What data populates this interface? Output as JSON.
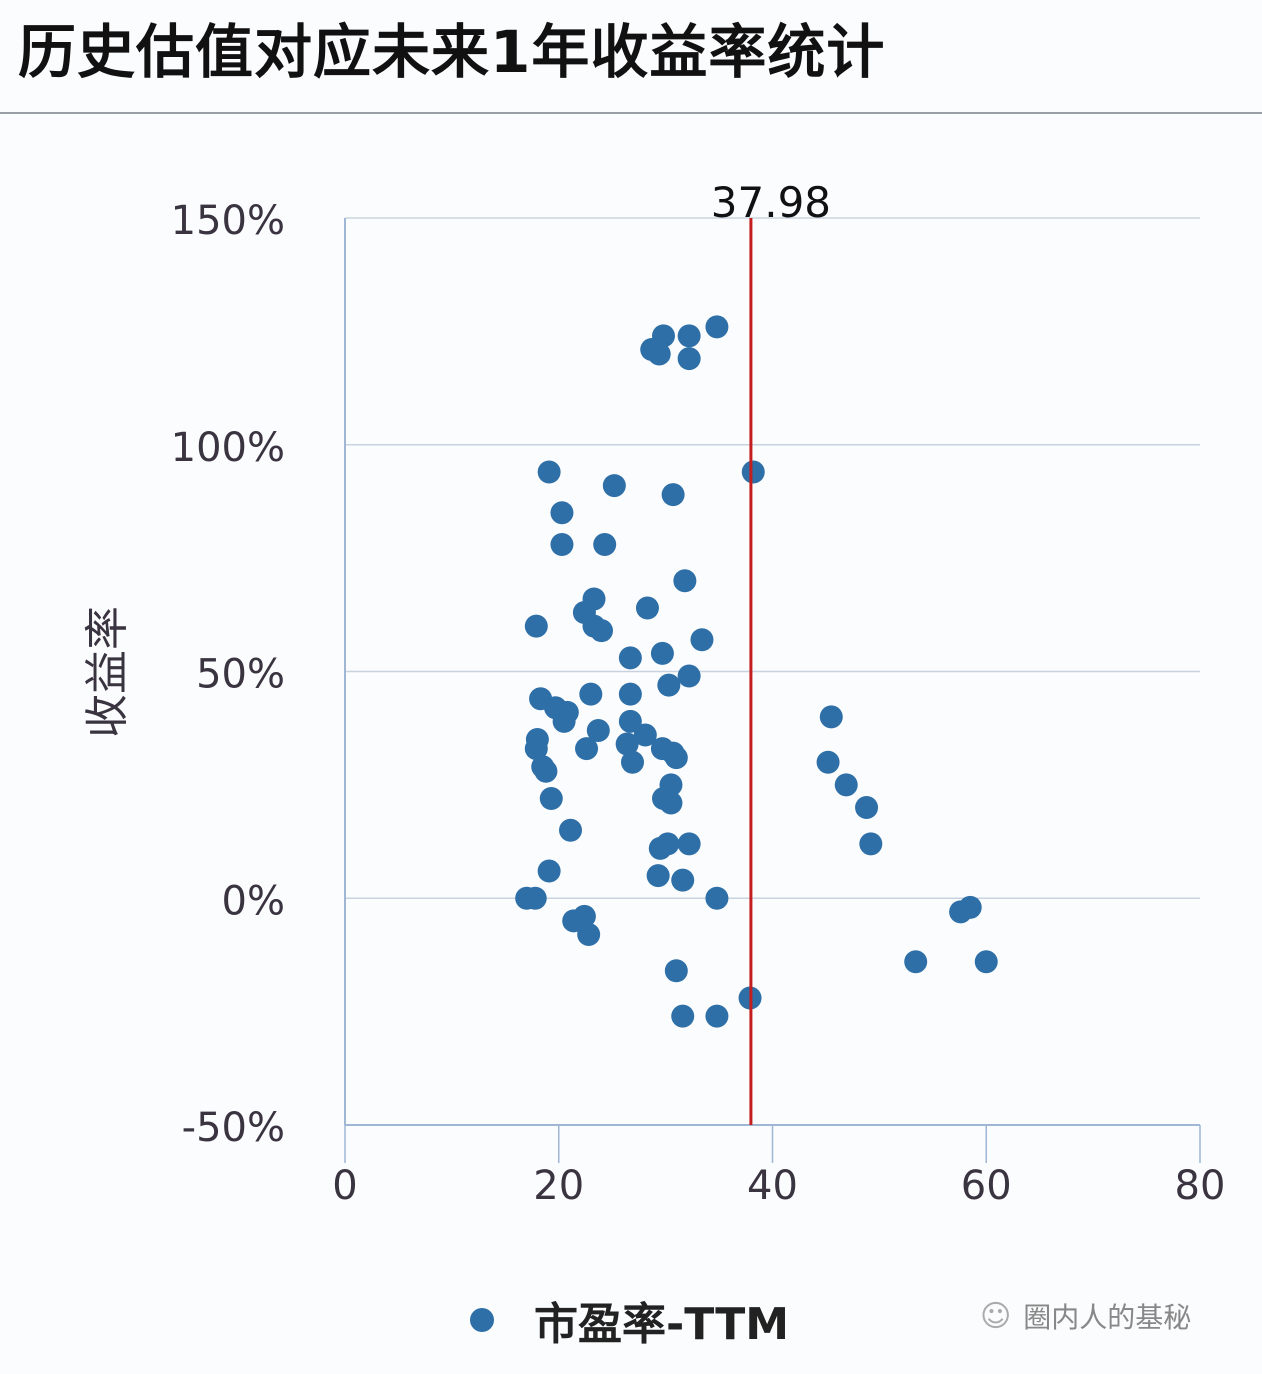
{
  "title": "历史估值对应未来1年收益率统计",
  "legend": {
    "label": "市盈率-TTM",
    "color": "#2e6fa7"
  },
  "watermark": {
    "icon": "wechat-icon",
    "text": "圈内人的基秘"
  },
  "colors": {
    "point": "#2e6fa7",
    "refline": "#c41e1e",
    "grid": "#c9d3e0",
    "axis": "#9fb6d4"
  },
  "chart_data": {
    "type": "scatter",
    "title": "历史估值对应未来1年收益率统计",
    "xlabel": "",
    "ylabel": "收益率",
    "xlim": [
      0,
      80
    ],
    "ylim": [
      -50,
      150
    ],
    "xticks": [
      "0",
      "20",
      "40",
      "60",
      "80"
    ],
    "yticks": [
      "150%",
      "100%",
      "50%",
      "0%",
      "-50%"
    ],
    "grid": "horizontal",
    "legend_position": "bottom",
    "reference_line": {
      "x": 37.98,
      "label": "37.98",
      "color": "#c41e1e"
    },
    "series": [
      {
        "name": "市盈率-TTM",
        "points": [
          [
            28.7,
            121
          ],
          [
            29.4,
            120
          ],
          [
            29.8,
            124
          ],
          [
            32.2,
            124
          ],
          [
            32.2,
            119
          ],
          [
            34.8,
            126
          ],
          [
            19.1,
            94
          ],
          [
            25.2,
            91
          ],
          [
            30.7,
            89
          ],
          [
            38.2,
            94
          ],
          [
            20.3,
            85
          ],
          [
            20.3,
            78
          ],
          [
            24.3,
            78
          ],
          [
            31.8,
            70
          ],
          [
            23.3,
            66
          ],
          [
            22.4,
            63
          ],
          [
            23.3,
            60
          ],
          [
            24.0,
            59
          ],
          [
            28.3,
            64
          ],
          [
            17.9,
            60
          ],
          [
            33.4,
            57
          ],
          [
            26.7,
            53
          ],
          [
            29.7,
            54
          ],
          [
            30.3,
            47
          ],
          [
            32.2,
            49
          ],
          [
            18.3,
            44
          ],
          [
            19.7,
            42
          ],
          [
            20.8,
            41
          ],
          [
            20.5,
            39
          ],
          [
            23.0,
            45
          ],
          [
            26.7,
            45
          ],
          [
            26.7,
            39
          ],
          [
            28.1,
            36
          ],
          [
            23.7,
            37
          ],
          [
            18.0,
            35
          ],
          [
            17.9,
            33
          ],
          [
            22.6,
            33
          ],
          [
            26.4,
            34
          ],
          [
            29.7,
            33
          ],
          [
            30.7,
            32
          ],
          [
            31.0,
            31
          ],
          [
            18.5,
            29
          ],
          [
            18.8,
            28
          ],
          [
            26.9,
            30
          ],
          [
            30.5,
            25
          ],
          [
            29.8,
            22
          ],
          [
            30.5,
            21
          ],
          [
            19.3,
            22
          ],
          [
            21.1,
            15
          ],
          [
            29.5,
            11
          ],
          [
            30.2,
            12
          ],
          [
            32.2,
            12
          ],
          [
            19.1,
            6
          ],
          [
            29.3,
            5
          ],
          [
            31.6,
            4
          ],
          [
            17.0,
            0
          ],
          [
            17.8,
            0
          ],
          [
            34.8,
            0
          ],
          [
            21.4,
            -5
          ],
          [
            22.4,
            -4
          ],
          [
            22.8,
            -8
          ],
          [
            31.0,
            -16
          ],
          [
            31.6,
            -26
          ],
          [
            34.8,
            -26
          ],
          [
            37.9,
            -22
          ],
          [
            45.5,
            40
          ],
          [
            45.2,
            30
          ],
          [
            46.9,
            25
          ],
          [
            48.8,
            20
          ],
          [
            49.2,
            12
          ],
          [
            53.4,
            -14
          ],
          [
            57.6,
            -3
          ],
          [
            58.5,
            -2
          ],
          [
            60.0,
            -14
          ]
        ]
      }
    ]
  }
}
